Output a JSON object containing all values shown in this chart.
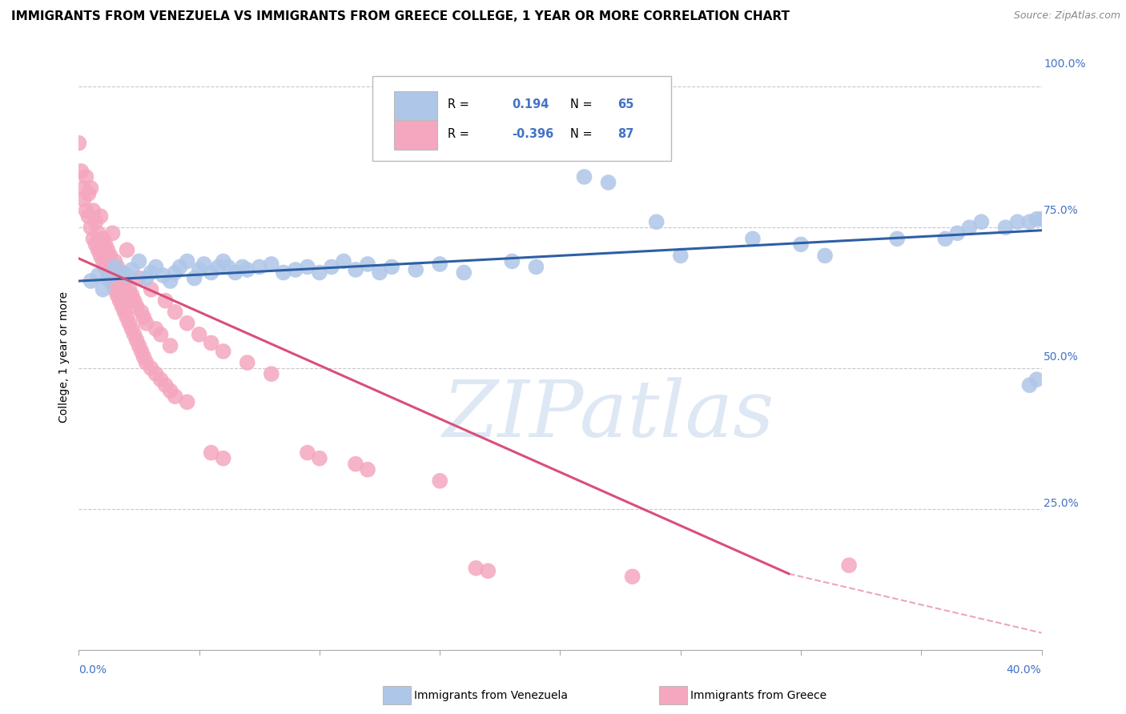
{
  "title": "IMMIGRANTS FROM VENEZUELA VS IMMIGRANTS FROM GREECE COLLEGE, 1 YEAR OR MORE CORRELATION CHART",
  "source": "Source: ZipAtlas.com",
  "xmin": 0.0,
  "xmax": 0.4,
  "ymin": 0.0,
  "ymax": 1.04,
  "blue_color": "#aec6e8",
  "pink_color": "#f4a7be",
  "blue_line_color": "#2e5fa3",
  "pink_line_color": "#d94f7a",
  "axis_label_color": "#4472c4",
  "grid_color": "#c8c8c8",
  "background_color": "#ffffff",
  "title_fontsize": 11,
  "blue_scatter": [
    [
      0.005,
      0.655
    ],
    [
      0.008,
      0.665
    ],
    [
      0.01,
      0.64
    ],
    [
      0.012,
      0.66
    ],
    [
      0.015,
      0.68
    ],
    [
      0.018,
      0.67
    ],
    [
      0.02,
      0.665
    ],
    [
      0.022,
      0.675
    ],
    [
      0.025,
      0.69
    ],
    [
      0.028,
      0.66
    ],
    [
      0.03,
      0.67
    ],
    [
      0.032,
      0.68
    ],
    [
      0.035,
      0.665
    ],
    [
      0.038,
      0.655
    ],
    [
      0.04,
      0.67
    ],
    [
      0.042,
      0.68
    ],
    [
      0.045,
      0.69
    ],
    [
      0.048,
      0.66
    ],
    [
      0.05,
      0.675
    ],
    [
      0.052,
      0.685
    ],
    [
      0.055,
      0.67
    ],
    [
      0.058,
      0.68
    ],
    [
      0.06,
      0.69
    ],
    [
      0.062,
      0.68
    ],
    [
      0.065,
      0.67
    ],
    [
      0.068,
      0.68
    ],
    [
      0.07,
      0.675
    ],
    [
      0.075,
      0.68
    ],
    [
      0.08,
      0.685
    ],
    [
      0.085,
      0.67
    ],
    [
      0.09,
      0.675
    ],
    [
      0.095,
      0.68
    ],
    [
      0.1,
      0.67
    ],
    [
      0.105,
      0.68
    ],
    [
      0.11,
      0.69
    ],
    [
      0.115,
      0.675
    ],
    [
      0.12,
      0.685
    ],
    [
      0.125,
      0.67
    ],
    [
      0.13,
      0.68
    ],
    [
      0.14,
      0.675
    ],
    [
      0.15,
      0.685
    ],
    [
      0.16,
      0.67
    ],
    [
      0.18,
      0.69
    ],
    [
      0.19,
      0.68
    ],
    [
      0.21,
      0.84
    ],
    [
      0.22,
      0.83
    ],
    [
      0.24,
      0.76
    ],
    [
      0.25,
      0.7
    ],
    [
      0.28,
      0.73
    ],
    [
      0.3,
      0.72
    ],
    [
      0.31,
      0.7
    ],
    [
      0.34,
      0.73
    ],
    [
      0.36,
      0.73
    ],
    [
      0.365,
      0.74
    ],
    [
      0.37,
      0.75
    ],
    [
      0.375,
      0.76
    ],
    [
      0.385,
      0.75
    ],
    [
      0.39,
      0.76
    ],
    [
      0.395,
      0.76
    ],
    [
      0.398,
      0.765
    ],
    [
      0.4,
      0.765
    ],
    [
      0.395,
      0.47
    ],
    [
      0.398,
      0.48
    ]
  ],
  "pink_scatter": [
    [
      0.0,
      0.9
    ],
    [
      0.001,
      0.85
    ],
    [
      0.002,
      0.82
    ],
    [
      0.002,
      0.8
    ],
    [
      0.003,
      0.84
    ],
    [
      0.003,
      0.78
    ],
    [
      0.004,
      0.81
    ],
    [
      0.004,
      0.77
    ],
    [
      0.005,
      0.82
    ],
    [
      0.005,
      0.75
    ],
    [
      0.006,
      0.78
    ],
    [
      0.006,
      0.73
    ],
    [
      0.007,
      0.76
    ],
    [
      0.007,
      0.72
    ],
    [
      0.008,
      0.74
    ],
    [
      0.008,
      0.71
    ],
    [
      0.009,
      0.77
    ],
    [
      0.009,
      0.7
    ],
    [
      0.01,
      0.73
    ],
    [
      0.01,
      0.69
    ],
    [
      0.011,
      0.72
    ],
    [
      0.011,
      0.68
    ],
    [
      0.012,
      0.71
    ],
    [
      0.012,
      0.67
    ],
    [
      0.013,
      0.7
    ],
    [
      0.013,
      0.66
    ],
    [
      0.014,
      0.74
    ],
    [
      0.014,
      0.65
    ],
    [
      0.015,
      0.69
    ],
    [
      0.015,
      0.64
    ],
    [
      0.016,
      0.68
    ],
    [
      0.016,
      0.63
    ],
    [
      0.017,
      0.67
    ],
    [
      0.017,
      0.62
    ],
    [
      0.018,
      0.66
    ],
    [
      0.018,
      0.61
    ],
    [
      0.019,
      0.65
    ],
    [
      0.019,
      0.6
    ],
    [
      0.02,
      0.71
    ],
    [
      0.02,
      0.59
    ],
    [
      0.021,
      0.64
    ],
    [
      0.021,
      0.58
    ],
    [
      0.022,
      0.63
    ],
    [
      0.022,
      0.57
    ],
    [
      0.023,
      0.62
    ],
    [
      0.023,
      0.56
    ],
    [
      0.024,
      0.61
    ],
    [
      0.024,
      0.55
    ],
    [
      0.025,
      0.66
    ],
    [
      0.025,
      0.54
    ],
    [
      0.026,
      0.6
    ],
    [
      0.026,
      0.53
    ],
    [
      0.027,
      0.59
    ],
    [
      0.027,
      0.52
    ],
    [
      0.028,
      0.58
    ],
    [
      0.028,
      0.51
    ],
    [
      0.03,
      0.64
    ],
    [
      0.03,
      0.5
    ],
    [
      0.032,
      0.57
    ],
    [
      0.032,
      0.49
    ],
    [
      0.034,
      0.56
    ],
    [
      0.034,
      0.48
    ],
    [
      0.036,
      0.62
    ],
    [
      0.036,
      0.47
    ],
    [
      0.038,
      0.54
    ],
    [
      0.038,
      0.46
    ],
    [
      0.04,
      0.6
    ],
    [
      0.04,
      0.45
    ],
    [
      0.045,
      0.58
    ],
    [
      0.045,
      0.44
    ],
    [
      0.05,
      0.56
    ],
    [
      0.055,
      0.545
    ],
    [
      0.06,
      0.53
    ],
    [
      0.07,
      0.51
    ],
    [
      0.08,
      0.49
    ],
    [
      0.055,
      0.35
    ],
    [
      0.06,
      0.34
    ],
    [
      0.095,
      0.35
    ],
    [
      0.1,
      0.34
    ],
    [
      0.115,
      0.33
    ],
    [
      0.12,
      0.32
    ],
    [
      0.15,
      0.3
    ],
    [
      0.165,
      0.145
    ],
    [
      0.17,
      0.14
    ],
    [
      0.23,
      0.13
    ],
    [
      0.32,
      0.15
    ]
  ],
  "blue_trendline": [
    [
      0.0,
      0.655
    ],
    [
      0.4,
      0.745
    ]
  ],
  "pink_trendline_solid": [
    [
      0.0,
      0.695
    ],
    [
      0.295,
      0.135
    ]
  ],
  "pink_trendline_dashed": [
    [
      0.295,
      0.135
    ],
    [
      0.4,
      0.03
    ]
  ]
}
